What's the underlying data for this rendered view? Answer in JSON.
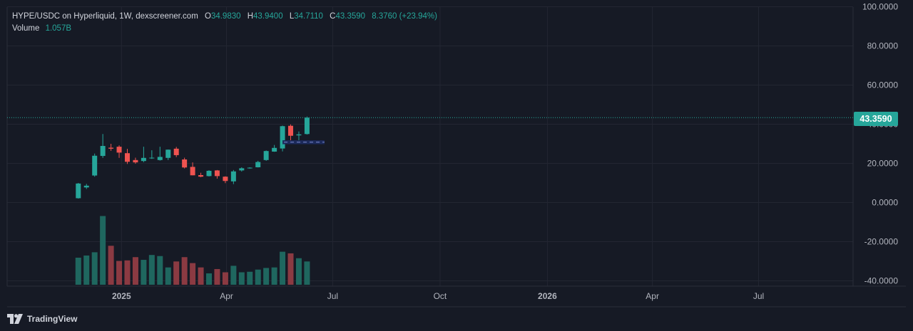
{
  "legend": {
    "symbol": "HYPE/USDC on Hyperliquid, 1W, dexscreener.com",
    "o_label": "O",
    "o_value": "34.9830",
    "h_label": "H",
    "h_value": "43.9400",
    "l_label": "L",
    "l_value": "34.7110",
    "c_label": "C",
    "c_value": "43.3590",
    "change": "8.3760 (+23.94%)",
    "volume_label": "Volume",
    "volume_value": "1.057B"
  },
  "last_price": "43.3590",
  "branding": "TradingView",
  "colors": {
    "up": "#26a69a",
    "down": "#ef5350",
    "vol_up": "#1f675f",
    "vol_down": "#8b3a42",
    "background": "#161a25",
    "grid": "#232632",
    "price_line": "#26a69a"
  },
  "chart_data": {
    "type": "candlestick",
    "interval": "1W",
    "y_axis_ticks": [
      "100.0000",
      "80.0000",
      "60.0000",
      "40.0000",
      "20.0000",
      "0.0000",
      "-20.0000",
      "-40.0000"
    ],
    "y_axis_tick_values": [
      100,
      80,
      60,
      40,
      20,
      0,
      -20,
      -40
    ],
    "x_axis_ticks": [
      "2025",
      "Apr",
      "Jul",
      "Oct",
      "2026",
      "Apr",
      "Jul"
    ],
    "x_axis_tick_dates": [
      "2025-01-01",
      "2025-04-01",
      "2025-07-01",
      "2025-10-01",
      "2026-01-01",
      "2026-04-01",
      "2026-07-01"
    ],
    "x_axis_bold": [
      true,
      false,
      false,
      false,
      true,
      false,
      false
    ],
    "ylim": [
      -42,
      101
    ],
    "xlim": [
      "2024-09-25",
      "2026-09-20"
    ],
    "grid": true,
    "price_line": 43.359,
    "range_box": {
      "start": "2025-05-19",
      "end": "2025-06-24",
      "low": 29.8,
      "high": 31.8
    },
    "candles": [
      {
        "date": "2024-11-25",
        "open": 2.2,
        "high": 10.0,
        "low": 2.0,
        "close": 9.7,
        "volume": 0.5
      },
      {
        "date": "2024-12-02",
        "open": 7.7,
        "high": 9.5,
        "low": 6.9,
        "close": 8.6,
        "volume": 0.54
      },
      {
        "date": "2024-12-09",
        "open": 13.8,
        "high": 25.0,
        "low": 13.2,
        "close": 23.9,
        "volume": 0.6
      },
      {
        "date": "2024-12-16",
        "open": 23.8,
        "high": 35.0,
        "low": 22.8,
        "close": 28.9,
        "volume": 1.27
      },
      {
        "date": "2024-12-23",
        "open": 28.0,
        "high": 30.0,
        "low": 26.4,
        "close": 27.5,
        "volume": 0.72
      },
      {
        "date": "2024-12-30",
        "open": 28.5,
        "high": 29.2,
        "low": 22.8,
        "close": 25.5,
        "volume": 0.44
      },
      {
        "date": "2025-01-06",
        "open": 25.2,
        "high": 27.4,
        "low": 19.7,
        "close": 20.8,
        "volume": 0.45
      },
      {
        "date": "2025-01-13",
        "open": 21.7,
        "high": 22.9,
        "low": 19.8,
        "close": 20.5,
        "volume": 0.51
      },
      {
        "date": "2025-01-20",
        "open": 21.2,
        "high": 28.5,
        "low": 20.6,
        "close": 22.8,
        "volume": 0.46
      },
      {
        "date": "2025-01-27",
        "open": 22.8,
        "high": 26.7,
        "low": 22.3,
        "close": 22.9,
        "volume": 0.55
      },
      {
        "date": "2025-02-03",
        "open": 21.7,
        "high": 28.5,
        "low": 21.4,
        "close": 23.3,
        "volume": 0.53
      },
      {
        "date": "2025-02-10",
        "open": 22.8,
        "high": 27.1,
        "low": 21.7,
        "close": 27.0,
        "volume": 0.32
      },
      {
        "date": "2025-02-17",
        "open": 27.5,
        "high": 28.4,
        "low": 23.2,
        "close": 24.2,
        "volume": 0.43
      },
      {
        "date": "2025-02-24",
        "open": 22.0,
        "high": 22.9,
        "low": 17.4,
        "close": 17.9,
        "volume": 0.51
      },
      {
        "date": "2025-03-03",
        "open": 18.2,
        "high": 20.5,
        "low": 13.9,
        "close": 13.9,
        "volume": 0.4
      },
      {
        "date": "2025-03-10",
        "open": 14.0,
        "high": 15.2,
        "low": 12.9,
        "close": 13.2,
        "volume": 0.32
      },
      {
        "date": "2025-03-17",
        "open": 13.5,
        "high": 16.5,
        "low": 13.3,
        "close": 16.2,
        "volume": 0.21
      },
      {
        "date": "2025-03-24",
        "open": 16.4,
        "high": 16.6,
        "low": 12.2,
        "close": 13.5,
        "volume": 0.29
      },
      {
        "date": "2025-03-31",
        "open": 13.2,
        "high": 13.4,
        "low": 9.9,
        "close": 11.0,
        "volume": 0.23
      },
      {
        "date": "2025-04-07",
        "open": 10.8,
        "high": 16.6,
        "low": 9.4,
        "close": 15.9,
        "volume": 0.35
      },
      {
        "date": "2025-04-14",
        "open": 16.4,
        "high": 18.0,
        "low": 15.8,
        "close": 17.5,
        "volume": 0.23
      },
      {
        "date": "2025-04-21",
        "open": 17.6,
        "high": 18.0,
        "low": 17.3,
        "close": 17.8,
        "volume": 0.24
      },
      {
        "date": "2025-04-28",
        "open": 18.0,
        "high": 21.3,
        "low": 17.9,
        "close": 20.7,
        "volume": 0.28
      },
      {
        "date": "2025-05-05",
        "open": 21.7,
        "high": 26.6,
        "low": 21.3,
        "close": 26.3,
        "volume": 0.31
      },
      {
        "date": "2025-05-12",
        "open": 26.0,
        "high": 29.4,
        "low": 25.9,
        "close": 27.9,
        "volume": 0.32
      },
      {
        "date": "2025-05-19",
        "open": 27.6,
        "high": 39.3,
        "low": 26.1,
        "close": 39.0,
        "volume": 0.61
      },
      {
        "date": "2025-05-26",
        "open": 39.2,
        "high": 39.9,
        "low": 30.2,
        "close": 34.1,
        "volume": 0.58
      },
      {
        "date": "2025-06-02",
        "open": 34.3,
        "high": 36.3,
        "low": 31.4,
        "close": 34.8,
        "volume": 0.49
      },
      {
        "date": "2025-06-09",
        "open": 34.983,
        "high": 43.94,
        "low": 34.711,
        "close": 43.359,
        "volume": 0.43
      }
    ]
  }
}
